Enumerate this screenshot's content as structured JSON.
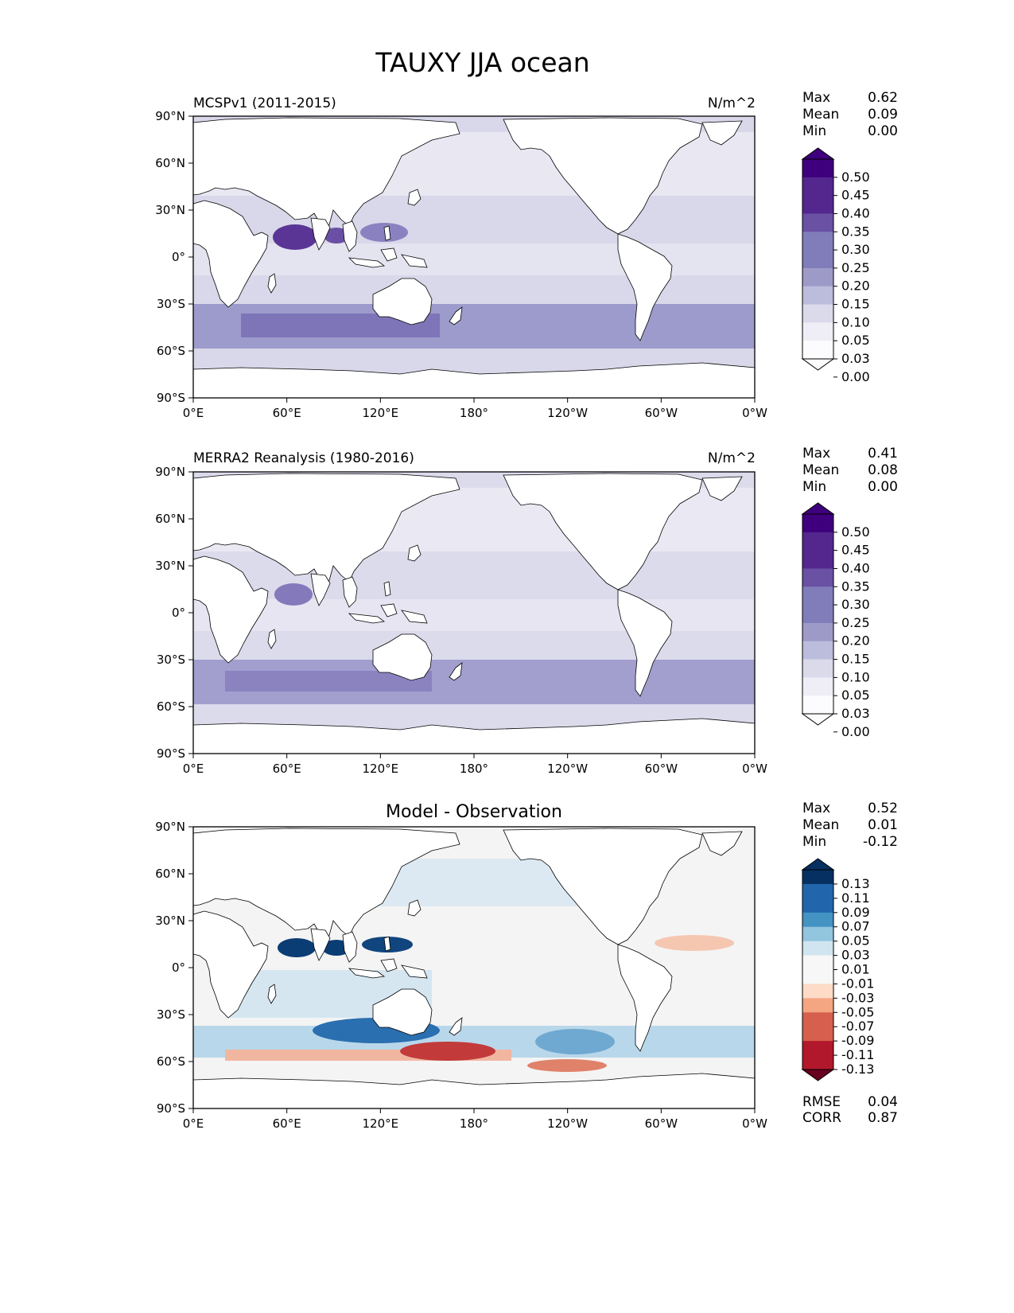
{
  "title": "TAUXY JJA ocean",
  "lon_ticks": [
    "0°E",
    "60°E",
    "120°E",
    "180°",
    "120°W",
    "60°W",
    "0°W"
  ],
  "lat_ticks": [
    "90°N",
    "60°N",
    "30°N",
    "0°",
    "30°S",
    "60°S",
    "90°S"
  ],
  "stat_labels": {
    "max": "Max",
    "mean": "Mean",
    "min": "Min",
    "rmse": "RMSE",
    "corr": "CORR"
  },
  "colors": {
    "coast": "#000000",
    "purples": [
      "#fcfbfd",
      "#efedf5",
      "#dadaeb",
      "#bcbddc",
      "#9e9ac8",
      "#807dba",
      "#6a51a3",
      "#54278f",
      "#3f007d"
    ],
    "diverging_pos": [
      "#f7f7f7",
      "#d1e5f0",
      "#92c5de",
      "#4393c3",
      "#2166ac",
      "#053061"
    ],
    "diverging_neg": [
      "#f7f7f7",
      "#fddbc7",
      "#f4a582",
      "#d6604d",
      "#b2182b",
      "#67001f"
    ]
  },
  "panels": [
    {
      "id": "model",
      "label": "MCSPv1 (2011-2015)",
      "units": "N/m^2",
      "stats": {
        "max": "0.62",
        "mean": "0.09",
        "min": "0.00"
      },
      "colorbar": {
        "levels": [
          "0.50",
          "0.45",
          "0.40",
          "0.35",
          "0.30",
          "0.25",
          "0.20",
          "0.15",
          "0.10",
          "0.05",
          "0.03",
          "0.00"
        ]
      }
    },
    {
      "id": "obs",
      "label": "MERRA2 Reanalysis (1980-2016)",
      "units": "N/m^2",
      "stats": {
        "max": "0.41",
        "mean": "0.08",
        "min": "0.00"
      },
      "colorbar": {
        "levels": [
          "0.50",
          "0.45",
          "0.40",
          "0.35",
          "0.30",
          "0.25",
          "0.20",
          "0.15",
          "0.10",
          "0.05",
          "0.03",
          "0.00"
        ]
      }
    },
    {
      "id": "diff",
      "title": "Model - Observation",
      "stats": {
        "max": "0.52",
        "mean": "0.01",
        "min": "-0.12"
      },
      "metrics": {
        "rmse": "0.04",
        "corr": "0.87"
      },
      "colorbar": {
        "levels": [
          "0.13",
          "0.11",
          "0.09",
          "0.07",
          "0.05",
          "0.03",
          "0.01",
          "-0.01",
          "-0.03",
          "-0.05",
          "-0.07",
          "-0.09",
          "-0.11",
          "-0.13"
        ]
      }
    }
  ]
}
